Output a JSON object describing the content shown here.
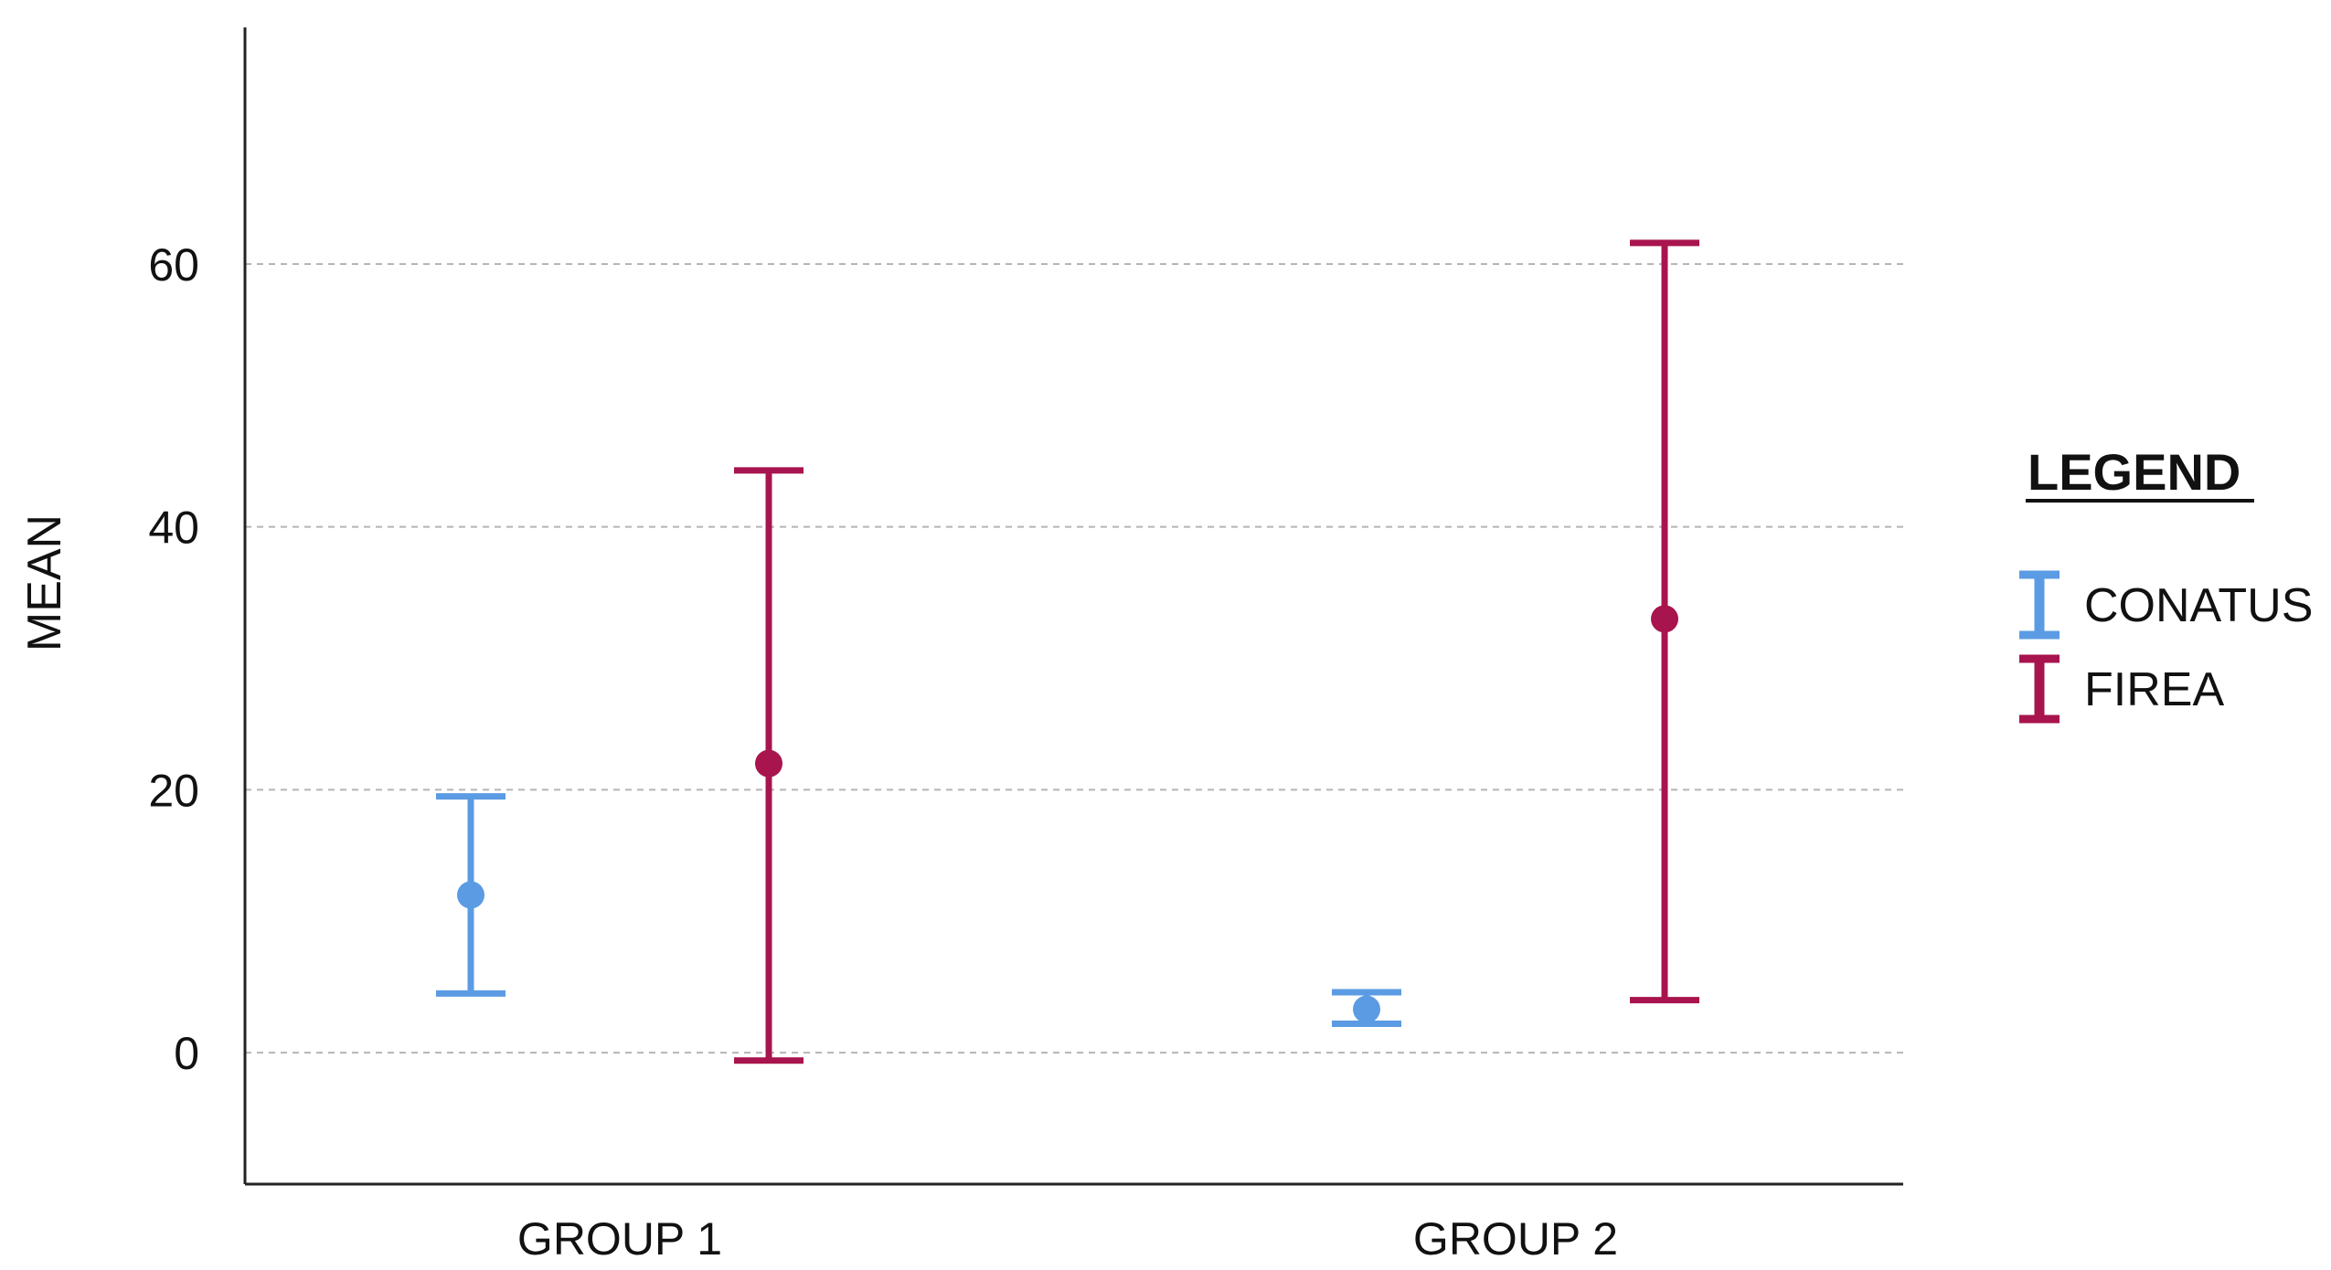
{
  "chart_data": {
    "type": "errorbar",
    "categories": [
      "GROUP 1",
      "GROUP 2"
    ],
    "ylabel": "MEAN",
    "xlabel": "",
    "yticks": [
      0,
      20,
      40,
      60
    ],
    "ylim": [
      -10,
      78
    ],
    "grid": "horizontal-dashed",
    "legend": {
      "title": "LEGEND",
      "placement": "right"
    },
    "series": [
      {
        "name": "CONATUS",
        "color": "#5B9BE3",
        "points": [
          {
            "category": "GROUP 1",
            "mean": 12,
            "lower": 4.5,
            "upper": 19.5
          },
          {
            "category": "GROUP 2",
            "mean": 3.3,
            "lower": 2.2,
            "upper": 4.6
          }
        ]
      },
      {
        "name": "FIREA",
        "color": "#A8144E",
        "points": [
          {
            "category": "GROUP 1",
            "mean": 22,
            "lower": -0.6,
            "upper": 44.3
          },
          {
            "category": "GROUP 2",
            "mean": 33,
            "lower": 4,
            "upper": 61.6
          }
        ]
      }
    ]
  }
}
